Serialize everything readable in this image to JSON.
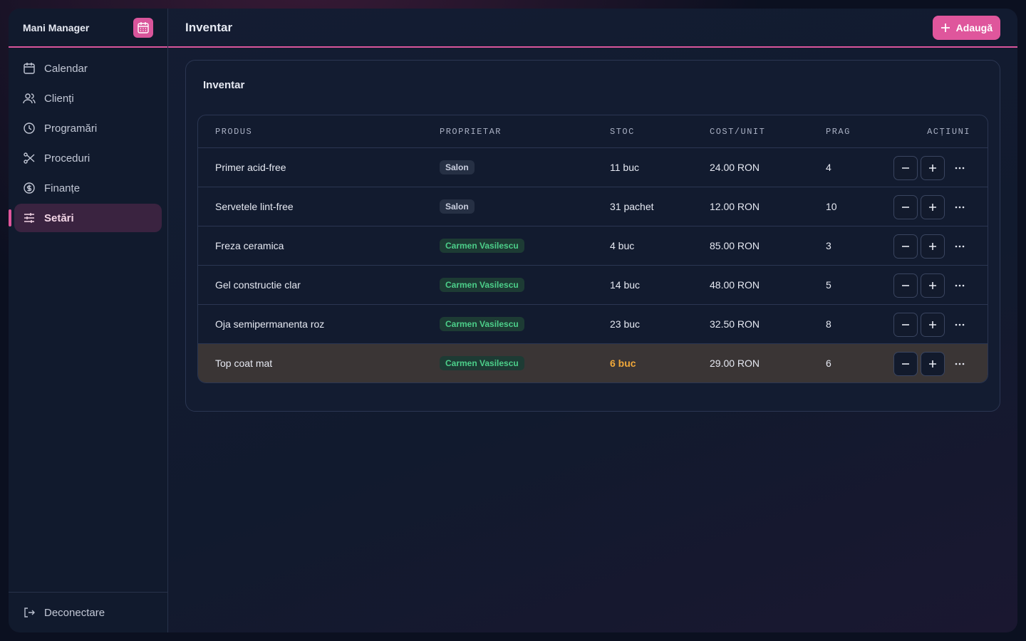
{
  "app": {
    "name": "Mani Manager"
  },
  "nav": [
    {
      "label": "Calendar"
    },
    {
      "label": "Clienți"
    },
    {
      "label": "Programări"
    },
    {
      "label": "Proceduri"
    },
    {
      "label": "Finanțe"
    },
    {
      "label": "Setări",
      "active": true
    }
  ],
  "logout": "Deconectare",
  "header": {
    "title": "Inventar",
    "button": "Adaugă"
  },
  "card": {
    "title": "Inventar"
  },
  "table": {
    "columns": [
      "PRODUS",
      "PROPRIETAR",
      "STOC",
      "COST/UNIT",
      "PRAG",
      "ACȚIUNI"
    ],
    "rows": [
      {
        "product": "Primer acid-free",
        "owner": "Salon",
        "owner_color": "gray",
        "stock": "11 buc",
        "cost": "24.00 RON",
        "threshold": "4"
      },
      {
        "product": "Servetele lint-free",
        "owner": "Salon",
        "owner_color": "gray",
        "stock": "31 pachet",
        "cost": "12.00 RON",
        "threshold": "10"
      },
      {
        "product": "Freza ceramica",
        "owner": "Carmen Vasilescu",
        "owner_color": "green",
        "stock": "4 buc",
        "cost": "85.00 RON",
        "threshold": "3"
      },
      {
        "product": "Gel constructie clar",
        "owner": "Carmen Vasilescu",
        "owner_color": "green",
        "stock": "14 buc",
        "cost": "48.00 RON",
        "threshold": "5"
      },
      {
        "product": "Oja semipermanenta roz",
        "owner": "Carmen Vasilescu",
        "owner_color": "green",
        "stock": "23 buc",
        "cost": "32.50 RON",
        "threshold": "8"
      },
      {
        "product": "Top coat mat",
        "owner": "Carmen Vasilescu",
        "owner_color": "green",
        "stock": "6 buc",
        "cost": "29.00 RON",
        "threshold": "6"
      }
    ]
  }
}
